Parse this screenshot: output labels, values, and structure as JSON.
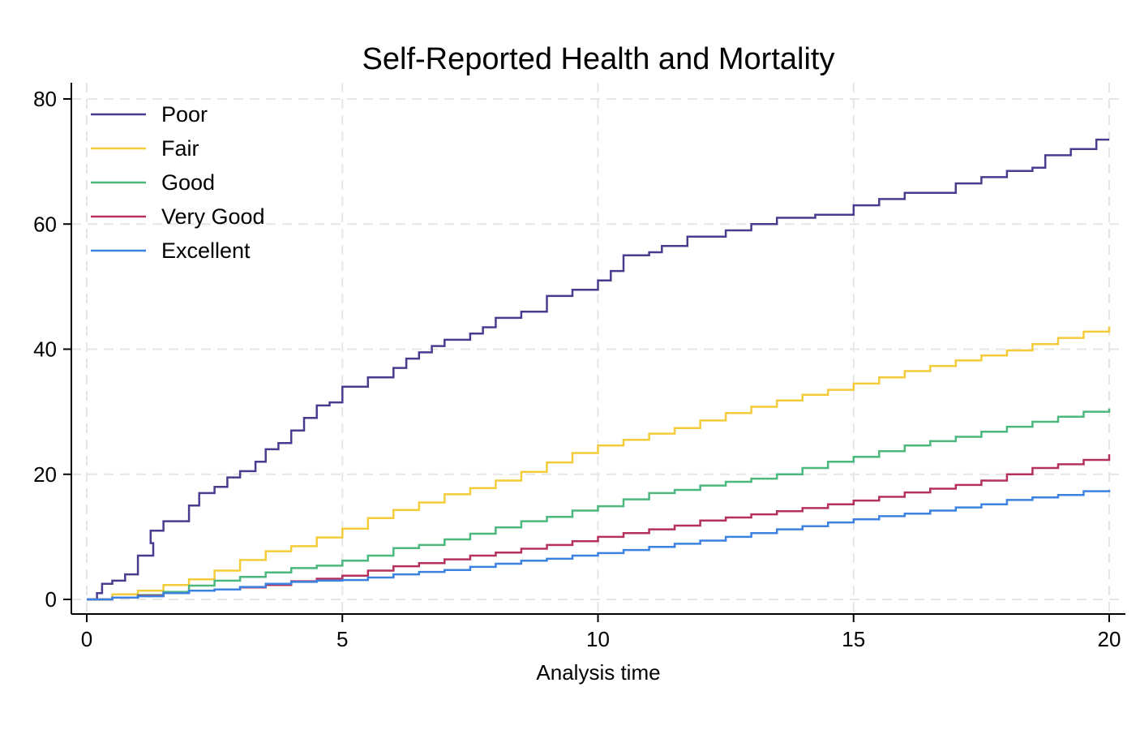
{
  "chart_data": {
    "type": "line",
    "title": "Self-Reported Health and Mortality",
    "xlabel": "Analysis time",
    "ylabel": "",
    "xlim": [
      0,
      20
    ],
    "ylim": [
      0,
      80
    ],
    "xticks": [
      0,
      5,
      10,
      15,
      20
    ],
    "yticks": [
      0,
      20,
      40,
      60,
      80
    ],
    "step": true,
    "grid": true,
    "legend_position": "top-left",
    "series": [
      {
        "name": "Poor",
        "color": "#4b3b8f",
        "points": [
          [
            0,
            0
          ],
          [
            0.2,
            1
          ],
          [
            0.3,
            2.5
          ],
          [
            0.5,
            3
          ],
          [
            0.75,
            4
          ],
          [
            1,
            7
          ],
          [
            1.3,
            9
          ],
          [
            1.25,
            11
          ],
          [
            1.5,
            12.5
          ],
          [
            2,
            15
          ],
          [
            2.2,
            17
          ],
          [
            2.5,
            18
          ],
          [
            2.75,
            19.5
          ],
          [
            3,
            20.5
          ],
          [
            3.3,
            22
          ],
          [
            3.5,
            24
          ],
          [
            3.75,
            25
          ],
          [
            4,
            27
          ],
          [
            4.25,
            29
          ],
          [
            4.5,
            31
          ],
          [
            4.75,
            31.5
          ],
          [
            5,
            34
          ],
          [
            5.5,
            35.5
          ],
          [
            6,
            37
          ],
          [
            6.25,
            38.5
          ],
          [
            6.5,
            39.5
          ],
          [
            6.75,
            40.5
          ],
          [
            7,
            41.5
          ],
          [
            7.5,
            42.5
          ],
          [
            7.75,
            43.5
          ],
          [
            8,
            45
          ],
          [
            8.5,
            46
          ],
          [
            9,
            48.5
          ],
          [
            9.5,
            49.5
          ],
          [
            10,
            51
          ],
          [
            10.25,
            52.5
          ],
          [
            10.5,
            55
          ],
          [
            11,
            55.5
          ],
          [
            11.25,
            56.5
          ],
          [
            11.75,
            58
          ],
          [
            12.5,
            59
          ],
          [
            13,
            60
          ],
          [
            13.5,
            61
          ],
          [
            14.25,
            61.5
          ],
          [
            15,
            63
          ],
          [
            15.5,
            64
          ],
          [
            16,
            65
          ],
          [
            17,
            66.5
          ],
          [
            17.5,
            67.5
          ],
          [
            18,
            68.5
          ],
          [
            18.5,
            69
          ],
          [
            18.75,
            71
          ],
          [
            19.25,
            72
          ],
          [
            19.75,
            73.5
          ],
          [
            20,
            73.5
          ]
        ]
      },
      {
        "name": "Fair",
        "color": "#f4cc3a",
        "points": [
          [
            0,
            0
          ],
          [
            0.5,
            0.8
          ],
          [
            1,
            1.4
          ],
          [
            1.5,
            2.3
          ],
          [
            2,
            3.2
          ],
          [
            2.5,
            4.6
          ],
          [
            3,
            6.3
          ],
          [
            3.5,
            7.7
          ],
          [
            4,
            8.5
          ],
          [
            4.5,
            9.9
          ],
          [
            5,
            11.3
          ],
          [
            5.5,
            13
          ],
          [
            6,
            14.3
          ],
          [
            6.5,
            15.5
          ],
          [
            7,
            16.8
          ],
          [
            7.5,
            17.8
          ],
          [
            8,
            19
          ],
          [
            8.5,
            20.4
          ],
          [
            9,
            21.9
          ],
          [
            9.5,
            23.4
          ],
          [
            10,
            24.6
          ],
          [
            10.5,
            25.5
          ],
          [
            11,
            26.5
          ],
          [
            11.5,
            27.4
          ],
          [
            12,
            28.6
          ],
          [
            12.5,
            29.8
          ],
          [
            13,
            30.8
          ],
          [
            13.5,
            31.8
          ],
          [
            14,
            32.7
          ],
          [
            14.5,
            33.5
          ],
          [
            15,
            34.5
          ],
          [
            15.5,
            35.5
          ],
          [
            16,
            36.5
          ],
          [
            16.5,
            37.3
          ],
          [
            17,
            38.2
          ],
          [
            17.5,
            39
          ],
          [
            18,
            39.8
          ],
          [
            18.5,
            40.8
          ],
          [
            19,
            41.8
          ],
          [
            19.5,
            42.8
          ],
          [
            20,
            43.6
          ]
        ]
      },
      {
        "name": "Good",
        "color": "#4bb87e",
        "points": [
          [
            0,
            0
          ],
          [
            0.5,
            0.3
          ],
          [
            1,
            0.7
          ],
          [
            1.5,
            1.2
          ],
          [
            2,
            2.2
          ],
          [
            2.5,
            3
          ],
          [
            3,
            3.6
          ],
          [
            3.5,
            4.3
          ],
          [
            4,
            5
          ],
          [
            4.5,
            5.4
          ],
          [
            5,
            6.2
          ],
          [
            5.5,
            7
          ],
          [
            6,
            8.2
          ],
          [
            6.5,
            8.7
          ],
          [
            7,
            9.6
          ],
          [
            7.5,
            10.5
          ],
          [
            8,
            11.5
          ],
          [
            8.5,
            12.5
          ],
          [
            9,
            13.2
          ],
          [
            9.5,
            14.2
          ],
          [
            10,
            14.9
          ],
          [
            10.5,
            16
          ],
          [
            11,
            17
          ],
          [
            11.5,
            17.5
          ],
          [
            12,
            18.2
          ],
          [
            12.5,
            18.8
          ],
          [
            13,
            19.3
          ],
          [
            13.5,
            20
          ],
          [
            14,
            21
          ],
          [
            14.5,
            22
          ],
          [
            15,
            22.8
          ],
          [
            15.5,
            23.7
          ],
          [
            16,
            24.6
          ],
          [
            16.5,
            25.3
          ],
          [
            17,
            26
          ],
          [
            17.5,
            26.8
          ],
          [
            18,
            27.6
          ],
          [
            18.5,
            28.4
          ],
          [
            19,
            29.2
          ],
          [
            19.5,
            30
          ],
          [
            20,
            30.5
          ]
        ]
      },
      {
        "name": "Very Good",
        "color": "#b5305c",
        "points": [
          [
            0,
            0
          ],
          [
            0.5,
            0.3
          ],
          [
            1,
            0.6
          ],
          [
            1.5,
            1
          ],
          [
            2,
            1.4
          ],
          [
            2.5,
            1.6
          ],
          [
            3,
            1.9
          ],
          [
            3.5,
            2.3
          ],
          [
            4,
            2.9
          ],
          [
            4.5,
            3.3
          ],
          [
            5,
            3.8
          ],
          [
            5.5,
            4.6
          ],
          [
            6,
            5.3
          ],
          [
            6.5,
            5.8
          ],
          [
            7,
            6.4
          ],
          [
            7.5,
            7
          ],
          [
            8,
            7.5
          ],
          [
            8.5,
            8.1
          ],
          [
            9,
            8.7
          ],
          [
            9.5,
            9.3
          ],
          [
            10,
            10
          ],
          [
            10.5,
            10.6
          ],
          [
            11,
            11.2
          ],
          [
            11.5,
            11.8
          ],
          [
            12,
            12.6
          ],
          [
            12.5,
            13.1
          ],
          [
            13,
            13.6
          ],
          [
            13.5,
            14.1
          ],
          [
            14,
            14.6
          ],
          [
            14.5,
            15.2
          ],
          [
            15,
            15.8
          ],
          [
            15.5,
            16.4
          ],
          [
            16,
            17.1
          ],
          [
            16.5,
            17.7
          ],
          [
            17,
            18.3
          ],
          [
            17.5,
            19
          ],
          [
            18,
            20
          ],
          [
            18.5,
            21
          ],
          [
            19,
            21.6
          ],
          [
            19.5,
            22.3
          ],
          [
            20,
            23.2
          ]
        ]
      },
      {
        "name": "Excellent",
        "color": "#3c82e0",
        "points": [
          [
            0,
            0
          ],
          [
            0.5,
            0.3
          ],
          [
            1,
            0.5
          ],
          [
            1.5,
            1
          ],
          [
            2,
            1.4
          ],
          [
            2.5,
            1.6
          ],
          [
            3,
            2
          ],
          [
            3.5,
            2.5
          ],
          [
            4,
            2.8
          ],
          [
            4.5,
            3
          ],
          [
            5,
            3.1
          ],
          [
            5.5,
            3.5
          ],
          [
            6,
            4
          ],
          [
            6.5,
            4.4
          ],
          [
            7,
            4.7
          ],
          [
            7.5,
            5.2
          ],
          [
            8,
            5.7
          ],
          [
            8.5,
            6.2
          ],
          [
            9,
            6.5
          ],
          [
            9.5,
            7
          ],
          [
            10,
            7.4
          ],
          [
            10.5,
            7.9
          ],
          [
            11,
            8.4
          ],
          [
            11.5,
            8.9
          ],
          [
            12,
            9.4
          ],
          [
            12.5,
            10
          ],
          [
            13,
            10.6
          ],
          [
            13.5,
            11.2
          ],
          [
            14,
            11.7
          ],
          [
            14.5,
            12.3
          ],
          [
            15,
            12.8
          ],
          [
            15.5,
            13.3
          ],
          [
            16,
            13.7
          ],
          [
            16.5,
            14.2
          ],
          [
            17,
            14.7
          ],
          [
            17.5,
            15.2
          ],
          [
            18,
            15.9
          ],
          [
            18.5,
            16.3
          ],
          [
            19,
            16.7
          ],
          [
            19.5,
            17.3
          ],
          [
            20,
            17.5
          ]
        ]
      }
    ]
  }
}
